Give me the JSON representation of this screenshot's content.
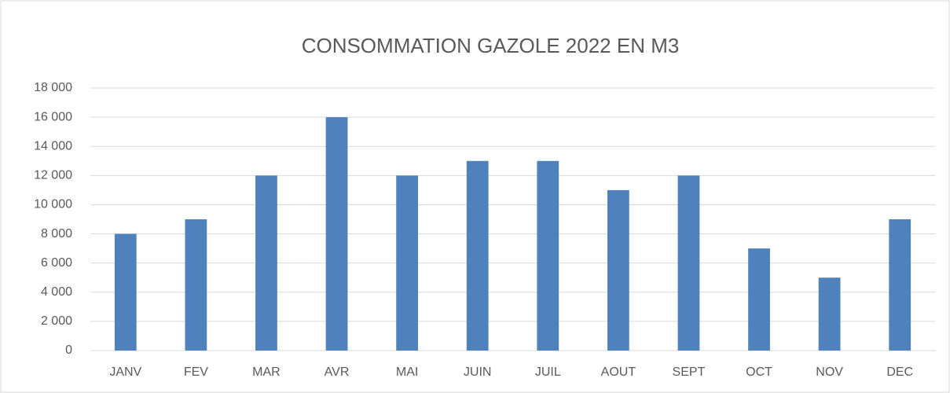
{
  "chart_data": {
    "type": "bar",
    "title": "CONSOMMATION GAZOLE 2022 EN M3",
    "categories": [
      "JANV",
      "FEV",
      "MAR",
      "AVR",
      "MAI",
      "JUIN",
      "JUIL",
      "AOUT",
      "SEPT",
      "OCT",
      "NOV",
      "DEC"
    ],
    "values": [
      8000,
      9000,
      12000,
      16000,
      12000,
      13000,
      13000,
      11000,
      12000,
      7000,
      5000,
      9000
    ],
    "color": "#4f81bd",
    "ylim": [
      0,
      18000
    ],
    "yticks": [
      0,
      {
        "value": 2000,
        "label": "2 000"
      },
      {
        "value": 4000,
        "label": "4 000"
      },
      {
        "value": 6000,
        "label": "6 000"
      },
      {
        "value": 8000,
        "label": "8 000"
      },
      {
        "value": 10000,
        "label": "10 000"
      },
      {
        "value": 12000,
        "label": "12 000"
      },
      {
        "value": 14000,
        "label": "14 000"
      },
      {
        "value": 16000,
        "label": "16 000"
      },
      {
        "value": 18000,
        "label": "18 000"
      }
    ],
    "grid": true
  }
}
